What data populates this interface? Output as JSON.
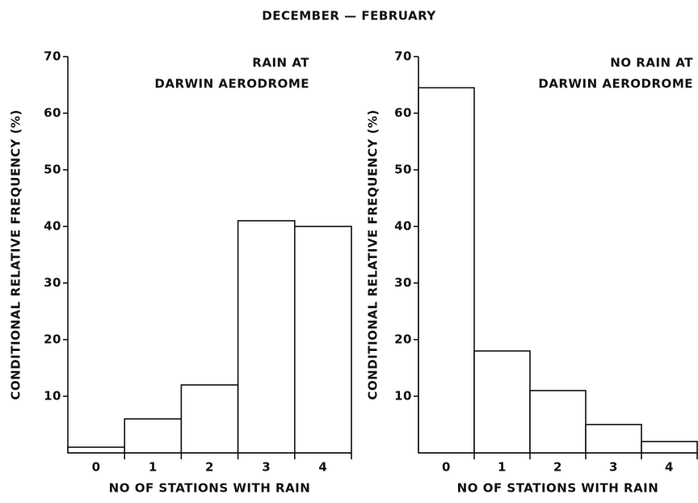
{
  "title": "DECEMBER — FEBRUARY",
  "chart_data": [
    {
      "type": "bar",
      "annotation": [
        "RAIN AT",
        "DARWIN AERODROME"
      ],
      "y_label": "CONDITIONAL RELATIVE FREQUENCY (%)",
      "x_label": "NO OF STATIONS WITH RAIN",
      "categories": [
        "0",
        "1",
        "2",
        "3",
        "4"
      ],
      "values": [
        1,
        6,
        12,
        41,
        40
      ],
      "ylim": [
        0,
        70
      ],
      "yticks": [
        10,
        20,
        30,
        40,
        50,
        60,
        70
      ],
      "color": "#ffffff"
    },
    {
      "type": "bar",
      "annotation": [
        "NO RAIN AT",
        "DARWIN AERODROME"
      ],
      "y_label": "CONDITIONAL RELATIVE FREQUENCY (%)",
      "x_label": "NO OF STATIONS WITH RAIN",
      "categories": [
        "0",
        "1",
        "2",
        "3",
        "4"
      ],
      "values": [
        64.5,
        18,
        11,
        5,
        2
      ],
      "ylim": [
        0,
        70
      ],
      "yticks": [
        10,
        20,
        30,
        40,
        50,
        60,
        70
      ],
      "color": "#ffffff"
    }
  ]
}
